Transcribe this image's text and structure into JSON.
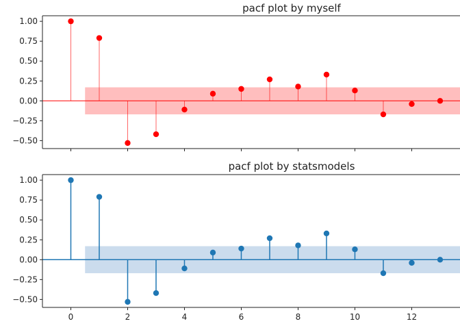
{
  "chart_data": [
    {
      "type": "stem",
      "title": "pacf plot by myself",
      "color": "#ff0000",
      "band_color": "#ffb3b3",
      "band": [
        -0.17,
        0.17
      ],
      "x": [
        0,
        1,
        2,
        3,
        4,
        5,
        6,
        7,
        8,
        9,
        10,
        11,
        12,
        13
      ],
      "values": [
        1.0,
        0.79,
        -0.53,
        -0.42,
        -0.11,
        0.09,
        0.15,
        0.27,
        0.18,
        0.33,
        0.13,
        -0.17,
        -0.04,
        0.0
      ],
      "ylim": [
        -0.6,
        1.07
      ],
      "xlim": [
        -1,
        13.7
      ],
      "yticks": [
        1.0,
        0.75,
        0.5,
        0.25,
        0.0,
        -0.25,
        -0.5
      ],
      "ytick_labels": [
        "1.00",
        "0.75",
        "0.50",
        "0.25",
        "0.00",
        "−0.25",
        "−0.50"
      ],
      "xticks": [
        0,
        2,
        4,
        6,
        8,
        10,
        12
      ],
      "xtick_labels": [],
      "grid": false
    },
    {
      "type": "stem",
      "title": "pacf plot by statsmodels",
      "color": "#1f77b4",
      "band_color": "#c2d6ea",
      "band": [
        -0.17,
        0.17
      ],
      "x": [
        0,
        1,
        2,
        3,
        4,
        5,
        6,
        7,
        8,
        9,
        10,
        11,
        12,
        13
      ],
      "values": [
        1.0,
        0.79,
        -0.53,
        -0.42,
        -0.11,
        0.09,
        0.14,
        0.27,
        0.18,
        0.33,
        0.13,
        -0.17,
        -0.04,
        0.0
      ],
      "ylim": [
        -0.6,
        1.07
      ],
      "xlim": [
        -1,
        13.7
      ],
      "yticks": [
        1.0,
        0.75,
        0.5,
        0.25,
        0.0,
        -0.25,
        -0.5
      ],
      "ytick_labels": [
        "1.00",
        "0.75",
        "0.50",
        "0.25",
        "0.00",
        "−0.25",
        "−0.50"
      ],
      "xticks": [
        0,
        2,
        4,
        6,
        8,
        10,
        12
      ],
      "xtick_labels": [
        "0",
        "2",
        "4",
        "6",
        "8",
        "10",
        "12"
      ],
      "grid": false
    }
  ]
}
